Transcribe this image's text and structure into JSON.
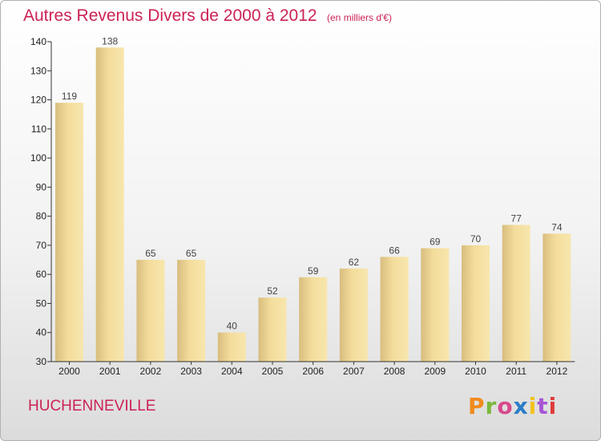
{
  "title": "Autres Revenus Divers de 2000 à 2012",
  "unit": "(en milliers d'€)",
  "location": "HUCHENNEVILLE",
  "logo": "Proxiti",
  "colors": {
    "title": "#cc2255",
    "bar_light": "#f6e3a6",
    "bar_dark": "#c9ad6e",
    "axis": "#333333",
    "logo": [
      "#f08a1c",
      "#7ab83c",
      "#d84a8c",
      "#2b7dc8",
      "#f2c21a",
      "#a855d6",
      "#e03a3a"
    ]
  },
  "chart_data": {
    "type": "bar",
    "categories": [
      "2000",
      "2001",
      "2002",
      "2003",
      "2004",
      "2005",
      "2006",
      "2007",
      "2008",
      "2009",
      "2010",
      "2011",
      "2012"
    ],
    "values": [
      119,
      138,
      65,
      65,
      40,
      52,
      59,
      62,
      66,
      69,
      70,
      77,
      74
    ],
    "title": "Autres Revenus Divers de 2000 à 2012",
    "xlabel": "",
    "ylabel": "",
    "ylim": [
      30,
      140
    ],
    "yticks": [
      30,
      40,
      50,
      60,
      70,
      80,
      90,
      100,
      110,
      120,
      130,
      140
    ],
    "grid": false,
    "legend": "none"
  }
}
